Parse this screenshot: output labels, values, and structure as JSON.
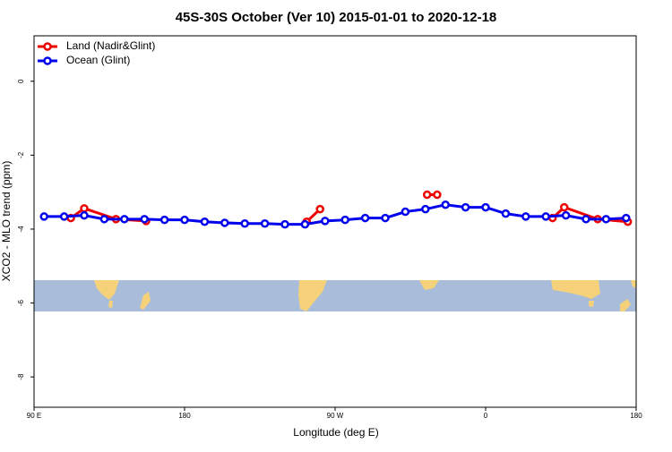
{
  "chart_data": {
    "type": "line",
    "title": "45S-30S October (Ver 10)   2015-01-01 to 2020-12-18",
    "xlabel": "Longitude (deg E)",
    "ylabel": "XCO2 - MLO trend (ppm)",
    "xlim": [
      90,
      450
    ],
    "ylim": [
      -8.82,
      1.23
    ],
    "xticks": [
      {
        "value": 90,
        "label": "90 E"
      },
      180,
      {
        "value": 270,
        "label": "90 W"
      },
      {
        "value": 360,
        "label": "0"
      },
      {
        "value": 450,
        "label": "180"
      }
    ],
    "yticks": [
      0,
      -2,
      -4,
      -6,
      -8
    ],
    "legend": "top-left",
    "series": [
      {
        "name": "Land (Nadir&Glint)",
        "color": "#ee0000",
        "x": [
          112,
          120,
          139,
          157,
          null,
          253,
          261,
          null,
          325,
          331,
          null,
          400,
          407,
          427,
          445
        ],
        "values": [
          -3.7,
          -3.44,
          -3.73,
          -3.78,
          null,
          -3.8,
          -3.46,
          null,
          -3.07,
          -3.07,
          null,
          -3.7,
          -3.41,
          -3.73,
          -3.8
        ]
      },
      {
        "name": "Ocean (Glint)",
        "color": "#0000ee",
        "x": [
          96,
          108,
          120,
          132,
          144,
          156,
          168,
          180,
          192,
          204,
          216,
          228,
          240,
          252,
          264,
          276,
          288,
          300,
          312,
          324,
          336,
          348,
          360,
          372,
          384,
          396,
          408,
          420,
          432,
          444
        ],
        "values": [
          -3.66,
          -3.66,
          -3.63,
          -3.73,
          -3.73,
          -3.73,
          -3.75,
          -3.75,
          -3.8,
          -3.83,
          -3.85,
          -3.85,
          -3.87,
          -3.87,
          -3.78,
          -3.75,
          -3.7,
          -3.7,
          -3.53,
          -3.46,
          -3.34,
          -3.41,
          -3.41,
          -3.58,
          -3.66,
          -3.66,
          -3.63,
          -3.73,
          -3.73,
          -3.7
        ]
      }
    ]
  }
}
